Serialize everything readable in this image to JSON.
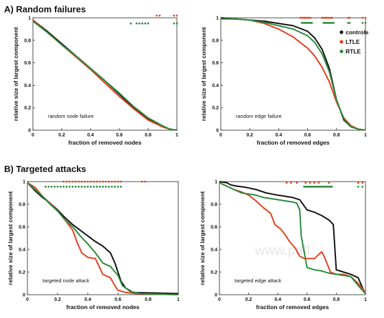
{
  "sections": {
    "a": "A) Random failures",
    "b": "B) Targeted attacks"
  },
  "watermark": "www.pdfl",
  "legend": {
    "items": [
      {
        "label": "controls",
        "color": "#111111"
      },
      {
        "label": "LTLE",
        "color": "#e2401f"
      },
      {
        "label": "RTLE",
        "color": "#2a8a3c"
      }
    ]
  },
  "chart_data": [
    {
      "type": "line",
      "xlabel": "fraction of removed nodes",
      "ylabel": "relative size of largest component",
      "annotation": "random node failure",
      "xlim": [
        0,
        1
      ],
      "ylim": [
        0,
        1
      ],
      "xticks": [
        "0",
        "0.2",
        "0.4",
        "0.6",
        "0.8",
        "1"
      ],
      "yticks": [
        "0",
        "0.2",
        "0.4",
        "0.6",
        "0.8",
        "1"
      ],
      "series": [
        {
          "color": "#111111",
          "x": [
            0,
            0.1,
            0.2,
            0.3,
            0.4,
            0.5,
            0.6,
            0.7,
            0.8,
            0.9,
            0.95,
            1.0
          ],
          "y": [
            0.98,
            0.88,
            0.77,
            0.66,
            0.55,
            0.44,
            0.32,
            0.2,
            0.1,
            0.03,
            0.01,
            0.0
          ]
        },
        {
          "color": "#e2401f",
          "x": [
            0,
            0.1,
            0.2,
            0.3,
            0.4,
            0.5,
            0.6,
            0.7,
            0.8,
            0.9,
            0.95,
            1.0
          ],
          "y": [
            0.98,
            0.87,
            0.76,
            0.65,
            0.54,
            0.42,
            0.3,
            0.19,
            0.09,
            0.03,
            0.01,
            0.0
          ]
        },
        {
          "color": "#2a8a3c",
          "x": [
            0,
            0.1,
            0.2,
            0.3,
            0.4,
            0.5,
            0.6,
            0.7,
            0.8,
            0.9,
            0.95,
            1.0
          ],
          "y": [
            0.97,
            0.87,
            0.76,
            0.66,
            0.55,
            0.44,
            0.33,
            0.21,
            0.11,
            0.04,
            0.01,
            0.0
          ]
        }
      ],
      "markers": [
        {
          "color": "#e2401f",
          "y": 1.02,
          "x": [
            0.86,
            0.88,
            0.98,
            1.0
          ]
        },
        {
          "color": "#2a8a3c",
          "y": 0.95,
          "x": [
            0.68,
            0.72,
            0.74,
            0.76,
            0.78,
            0.8,
            0.98,
            1.0
          ]
        }
      ]
    },
    {
      "type": "line",
      "xlabel": "fraction of removed edges",
      "ylabel": "relative size of largest component",
      "annotation": "random edge failure",
      "xlim": [
        0,
        1
      ],
      "ylim": [
        0,
        1
      ],
      "xticks": [
        "0",
        "0.2",
        "0.4",
        "0.6",
        "0.8",
        "1"
      ],
      "yticks": [
        "0",
        "0.2",
        "0.4",
        "0.6",
        "0.8",
        "1"
      ],
      "series": [
        {
          "color": "#111111",
          "x": [
            0,
            0.1,
            0.2,
            0.3,
            0.4,
            0.5,
            0.6,
            0.65,
            0.7,
            0.75,
            0.8,
            0.85,
            0.9,
            0.95,
            1.0
          ],
          "y": [
            1.0,
            0.99,
            0.98,
            0.97,
            0.95,
            0.93,
            0.88,
            0.82,
            0.72,
            0.55,
            0.27,
            0.09,
            0.03,
            0.01,
            0.0
          ]
        },
        {
          "color": "#e2401f",
          "x": [
            0,
            0.1,
            0.2,
            0.3,
            0.4,
            0.5,
            0.6,
            0.65,
            0.7,
            0.75,
            0.8,
            0.85,
            0.9,
            0.95,
            1.0
          ],
          "y": [
            0.99,
            0.99,
            0.98,
            0.95,
            0.9,
            0.83,
            0.73,
            0.66,
            0.56,
            0.43,
            0.25,
            0.11,
            0.04,
            0.01,
            0.0
          ]
        },
        {
          "color": "#2a8a3c",
          "x": [
            0,
            0.1,
            0.2,
            0.3,
            0.4,
            0.5,
            0.6,
            0.65,
            0.7,
            0.75,
            0.8,
            0.85,
            0.9,
            0.95,
            1.0
          ],
          "y": [
            0.99,
            0.99,
            0.98,
            0.96,
            0.93,
            0.9,
            0.84,
            0.78,
            0.68,
            0.52,
            0.27,
            0.1,
            0.03,
            0.01,
            0.0
          ]
        }
      ],
      "markers": [
        {
          "color": "#e2401f",
          "y": 1.0,
          "x": [
            0.55,
            0.56,
            0.57,
            0.58,
            0.59,
            0.6,
            0.61,
            0.62,
            0.7,
            0.71,
            0.72,
            0.73,
            0.74,
            0.75,
            0.76,
            0.77,
            0.88,
            0.89,
            0.98,
            1.0
          ]
        },
        {
          "color": "#2a8a3c",
          "y": 0.955,
          "x": [
            0.56,
            0.57,
            0.58,
            0.59,
            0.6,
            0.61,
            0.62,
            0.63,
            0.71,
            0.72,
            0.73,
            0.74,
            0.75,
            0.76,
            0.77,
            0.78,
            0.88,
            0.89,
            0.98,
            1.0
          ]
        }
      ]
    },
    {
      "type": "line",
      "xlabel": "fraction of removed nodes",
      "ylabel": "relative size of largest component",
      "annotation": "targeted node attack",
      "xlim": [
        0,
        1
      ],
      "ylim": [
        0,
        1
      ],
      "xticks": [
        "0",
        "0.2",
        "0.4",
        "0.6",
        "0.8",
        "1"
      ],
      "yticks": [
        "0",
        "0.2",
        "0.4",
        "0.6",
        "0.8",
        "1"
      ],
      "series": [
        {
          "color": "#111111",
          "x": [
            0,
            0.05,
            0.1,
            0.15,
            0.2,
            0.25,
            0.3,
            0.35,
            0.4,
            0.45,
            0.5,
            0.55,
            0.58,
            0.6,
            0.62,
            0.65,
            0.7,
            1.0
          ],
          "y": [
            0.99,
            0.92,
            0.86,
            0.81,
            0.75,
            0.68,
            0.62,
            0.57,
            0.52,
            0.47,
            0.43,
            0.37,
            0.28,
            0.2,
            0.12,
            0.06,
            0.02,
            0.01
          ]
        },
        {
          "color": "#e2401f",
          "x": [
            0,
            0.05,
            0.1,
            0.15,
            0.2,
            0.25,
            0.3,
            0.33,
            0.36,
            0.4,
            0.45,
            0.5,
            0.55,
            0.58,
            0.6,
            0.65,
            0.72,
            1.0
          ],
          "y": [
            0.99,
            0.95,
            0.87,
            0.81,
            0.74,
            0.66,
            0.57,
            0.46,
            0.37,
            0.33,
            0.32,
            0.18,
            0.15,
            0.08,
            0.04,
            0.02,
            0.01,
            0.0
          ]
        },
        {
          "color": "#2a8a3c",
          "x": [
            0,
            0.05,
            0.1,
            0.15,
            0.2,
            0.25,
            0.3,
            0.35,
            0.4,
            0.45,
            0.5,
            0.55,
            0.6,
            0.63,
            0.68,
            0.75,
            1.0
          ],
          "y": [
            0.99,
            0.93,
            0.87,
            0.8,
            0.74,
            0.66,
            0.6,
            0.52,
            0.45,
            0.37,
            0.28,
            0.25,
            0.17,
            0.08,
            0.03,
            0.01,
            0.0
          ]
        }
      ],
      "markers": [
        {
          "color": "#e2401f",
          "y": 1.0,
          "x": [
            0.24,
            0.26,
            0.28,
            0.3,
            0.32,
            0.34,
            0.36,
            0.38,
            0.4,
            0.42,
            0.44,
            0.46,
            0.48,
            0.5,
            0.52,
            0.54,
            0.56,
            0.58,
            0.6,
            0.62,
            0.76,
            0.78
          ]
        },
        {
          "color": "#2a8a3c",
          "y": 0.955,
          "x": [
            0.12,
            0.14,
            0.16,
            0.18,
            0.2,
            0.22,
            0.24,
            0.26,
            0.28,
            0.3,
            0.32,
            0.34,
            0.36,
            0.38,
            0.4,
            0.42,
            0.44,
            0.46,
            0.48,
            0.5,
            0.52,
            0.54,
            0.56,
            0.58,
            0.6,
            0.62
          ]
        }
      ]
    },
    {
      "type": "line",
      "xlabel": "fraction of removed edges",
      "ylabel": "relative size of largest component",
      "annotation": "targeted edge attack",
      "xlim": [
        0,
        1
      ],
      "ylim": [
        0,
        1
      ],
      "xticks": [
        "0",
        "0.2",
        "0.4",
        "0.6",
        "0.8",
        "1"
      ],
      "yticks": [
        "0",
        "0.2",
        "0.4",
        "0.6",
        "0.8",
        "1"
      ],
      "series": [
        {
          "color": "#111111",
          "x": [
            0,
            0.05,
            0.08,
            0.12,
            0.18,
            0.25,
            0.32,
            0.4,
            0.45,
            0.5,
            0.55,
            0.6,
            0.65,
            0.7,
            0.75,
            0.78,
            0.8,
            0.85,
            0.9,
            0.95,
            0.98,
            1.0
          ],
          "y": [
            1.0,
            0.99,
            0.97,
            0.96,
            0.95,
            0.93,
            0.9,
            0.88,
            0.87,
            0.86,
            0.84,
            0.75,
            0.73,
            0.7,
            0.66,
            0.62,
            0.22,
            0.2,
            0.18,
            0.15,
            0.06,
            0.01
          ]
        },
        {
          "color": "#e2401f",
          "x": [
            0,
            0.05,
            0.1,
            0.15,
            0.2,
            0.25,
            0.3,
            0.35,
            0.38,
            0.42,
            0.45,
            0.48,
            0.52,
            0.55,
            0.58,
            0.65,
            0.7,
            0.72,
            0.76,
            0.8,
            0.85,
            0.9,
            0.95,
            1.0
          ],
          "y": [
            0.99,
            0.96,
            0.93,
            0.91,
            0.88,
            0.83,
            0.77,
            0.72,
            0.62,
            0.58,
            0.53,
            0.47,
            0.41,
            0.34,
            0.32,
            0.32,
            0.38,
            0.33,
            0.2,
            0.18,
            0.18,
            0.16,
            0.1,
            0.02
          ]
        },
        {
          "color": "#2a8a3c",
          "x": [
            0,
            0.05,
            0.1,
            0.15,
            0.2,
            0.25,
            0.3,
            0.35,
            0.4,
            0.45,
            0.5,
            0.53,
            0.55,
            0.56,
            0.6,
            0.65,
            0.7,
            0.75,
            0.8,
            0.85,
            0.9,
            0.95,
            1.0
          ],
          "y": [
            0.99,
            0.96,
            0.93,
            0.9,
            0.89,
            0.88,
            0.86,
            0.85,
            0.84,
            0.83,
            0.82,
            0.81,
            0.75,
            0.52,
            0.24,
            0.22,
            0.21,
            0.19,
            0.18,
            0.17,
            0.16,
            0.08,
            0.01
          ]
        }
      ],
      "markers": [
        {
          "color": "#e2401f",
          "y": 0.99,
          "x": [
            0.46,
            0.49,
            0.53,
            0.59,
            0.62,
            0.65,
            0.68,
            0.75,
            0.95,
            0.98
          ]
        },
        {
          "color": "#2a8a3c",
          "y": 0.955,
          "x": [
            0.58,
            0.59,
            0.6,
            0.61,
            0.62,
            0.63,
            0.64,
            0.65,
            0.66,
            0.67,
            0.68,
            0.69,
            0.7,
            0.71,
            0.72,
            0.73,
            0.74,
            0.75,
            0.76,
            0.77,
            0.95,
            0.98
          ]
        }
      ]
    }
  ]
}
